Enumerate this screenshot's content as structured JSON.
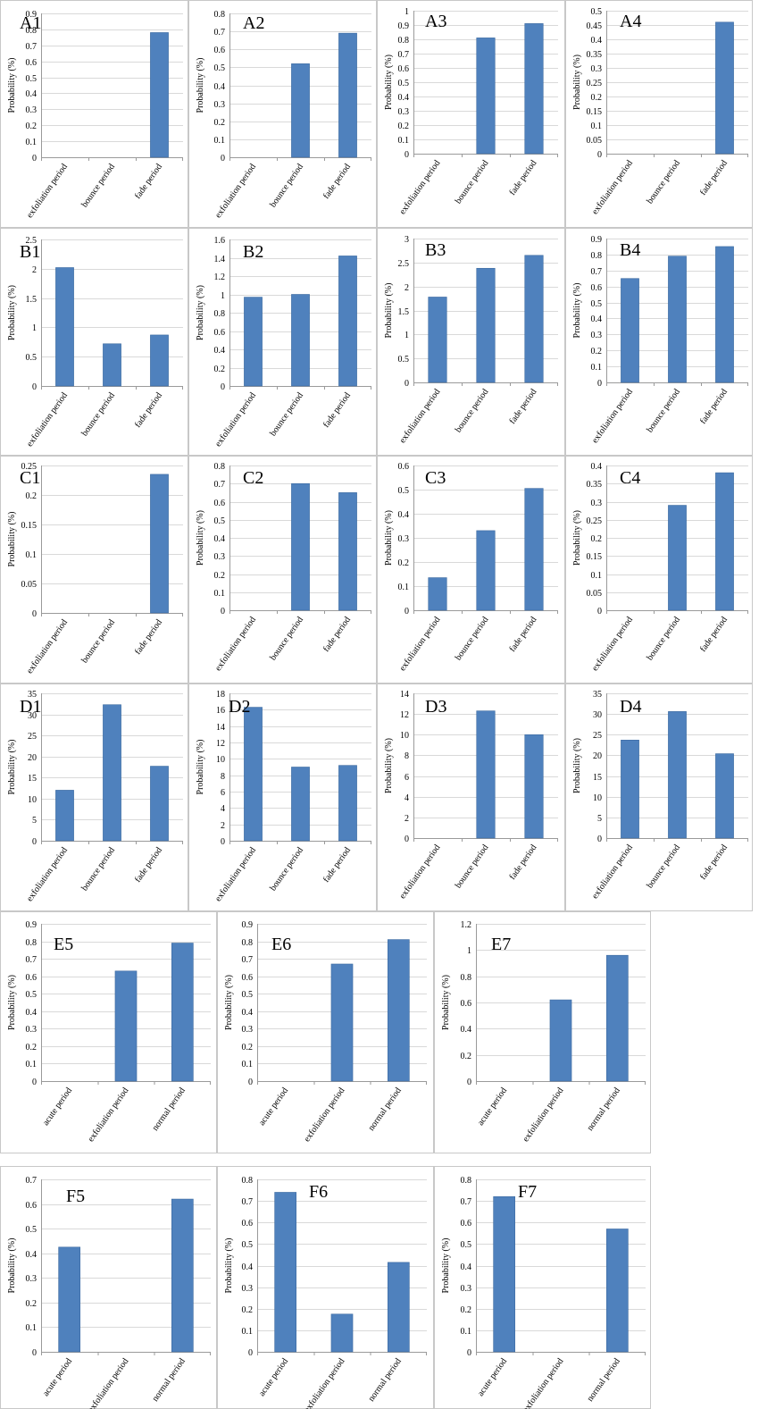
{
  "figure": {
    "background": "#ffffff",
    "bar_color": "#4f81bd"
  },
  "chart_data": [
    {
      "id": "A1",
      "type": "bar",
      "title": "A1",
      "ylabel": "Probability (%)",
      "categories": [
        "exfoliation period",
        "bounce period",
        "fade period"
      ],
      "values": [
        0,
        0,
        0.78
      ],
      "ylim": [
        0,
        0.9
      ],
      "yticks": [
        "0",
        "0.1",
        "0.2",
        "0.3",
        "0.4",
        "0.5",
        "0.6",
        "0.7",
        "0.8",
        "0.9"
      ],
      "grid": true
    },
    {
      "id": "A2",
      "type": "bar",
      "title": "A2",
      "ylabel": "Probability (%)",
      "categories": [
        "exfoliation period",
        "bounce period",
        "fade period"
      ],
      "values": [
        0,
        0.52,
        0.69
      ],
      "ylim": [
        0,
        0.8
      ],
      "yticks": [
        "0",
        "0.1",
        "0.2",
        "0.3",
        "0.4",
        "0.5",
        "0.6",
        "0.7",
        "0.8"
      ],
      "grid": true
    },
    {
      "id": "A3",
      "type": "bar",
      "title": "A3",
      "ylabel": "Probability (%)",
      "categories": [
        "exfoliation period",
        "bounce period",
        "fade period"
      ],
      "values": [
        0,
        0.81,
        0.91
      ],
      "ylim": [
        0,
        1
      ],
      "yticks": [
        "0",
        "0.1",
        "0.2",
        "0.3",
        "0.4",
        "0.5",
        "0.6",
        "0.7",
        "0.8",
        "0.9",
        "1"
      ],
      "grid": true
    },
    {
      "id": "A4",
      "type": "bar",
      "title": "A4",
      "ylabel": "Probability (%)",
      "categories": [
        "exfoliation period",
        "bounce period",
        "fade period"
      ],
      "values": [
        0,
        0,
        0.46
      ],
      "ylim": [
        0,
        0.5
      ],
      "yticks": [
        "0",
        "0.05",
        "0.1",
        "0.15",
        "0.2",
        "0.25",
        "0.3",
        "0.35",
        "0.4",
        "0.45",
        "0.5"
      ],
      "grid": true
    },
    {
      "id": "B1",
      "type": "bar",
      "title": "B1",
      "ylabel": "Probability (%)",
      "categories": [
        "exfoliation period",
        "bounce period",
        "fade period"
      ],
      "values": [
        2.02,
        0.72,
        0.87
      ],
      "ylim": [
        0,
        2.5
      ],
      "yticks": [
        "0",
        "0.5",
        "1",
        "1.5",
        "2",
        "2.5"
      ],
      "grid": true
    },
    {
      "id": "B2",
      "type": "bar",
      "title": "B2",
      "ylabel": "Probability (%)",
      "categories": [
        "exfoliation period",
        "bounce period",
        "fade period"
      ],
      "values": [
        0.97,
        1.0,
        1.42
      ],
      "ylim": [
        0,
        1.6
      ],
      "yticks": [
        "0",
        "0.2",
        "0.4",
        "0.6",
        "0.8",
        "1",
        "1.2",
        "1.4",
        "1.6"
      ],
      "grid": true
    },
    {
      "id": "B3",
      "type": "bar",
      "title": "B3",
      "ylabel": "Probability (%)",
      "categories": [
        "exfoliation period",
        "bounce period",
        "fade period"
      ],
      "values": [
        1.78,
        2.38,
        2.65
      ],
      "ylim": [
        0,
        3
      ],
      "yticks": [
        "0",
        "0.5",
        "1",
        "1.5",
        "2",
        "2.5",
        "3"
      ],
      "grid": true
    },
    {
      "id": "B4",
      "type": "bar",
      "title": "B4",
      "ylabel": "Probability (%)",
      "categories": [
        "exfoliation period",
        "bounce period",
        "fade period"
      ],
      "values": [
        0.65,
        0.79,
        0.85
      ],
      "ylim": [
        0,
        0.9
      ],
      "yticks": [
        "0",
        "0.1",
        "0.2",
        "0.3",
        "0.4",
        "0.5",
        "0.6",
        "0.7",
        "0.8",
        "0.9"
      ],
      "grid": true
    },
    {
      "id": "C1",
      "type": "bar",
      "title": "C1",
      "ylabel": "Probability (%)",
      "categories": [
        "exfoliation period",
        "bounce period",
        "fade period"
      ],
      "values": [
        0,
        0,
        0.235
      ],
      "ylim": [
        0,
        0.25
      ],
      "yticks": [
        "0",
        "0.05",
        "0.1",
        "0.15",
        "0.2",
        "0.25"
      ],
      "grid": true
    },
    {
      "id": "C2",
      "type": "bar",
      "title": "C2",
      "ylabel": "Probability (%)",
      "categories": [
        "exfoliation period",
        "bounce period",
        "fade period"
      ],
      "values": [
        0,
        0.7,
        0.65
      ],
      "ylim": [
        0,
        0.8
      ],
      "yticks": [
        "0",
        "0.1",
        "0.2",
        "0.3",
        "0.4",
        "0.5",
        "0.6",
        "0.7",
        "0.8"
      ],
      "grid": true
    },
    {
      "id": "C3",
      "type": "bar",
      "title": "C3",
      "ylabel": "Probability (%)",
      "categories": [
        "exfoliation period",
        "bounce period",
        "fade period"
      ],
      "values": [
        0.135,
        0.33,
        0.505
      ],
      "ylim": [
        0,
        0.6
      ],
      "yticks": [
        "0",
        "0.1",
        "0.2",
        "0.3",
        "0.4",
        "0.5",
        "0.6"
      ],
      "grid": true
    },
    {
      "id": "C4",
      "type": "bar",
      "title": "C4",
      "ylabel": "Probability (%)",
      "categories": [
        "exfoliation period",
        "bounce period",
        "fade period"
      ],
      "values": [
        0,
        0.29,
        0.38
      ],
      "ylim": [
        0,
        0.4
      ],
      "yticks": [
        "0",
        "0.05",
        "0.1",
        "0.15",
        "0.2",
        "0.25",
        "0.3",
        "0.35",
        "0.4"
      ],
      "grid": true
    },
    {
      "id": "D1",
      "type": "bar",
      "title": "D1",
      "ylabel": "Probability (%)",
      "categories": [
        "exfoliation period",
        "bounce period",
        "fade period"
      ],
      "values": [
        12,
        32.3,
        17.7
      ],
      "ylim": [
        0,
        35
      ],
      "yticks": [
        "0",
        "5",
        "10",
        "15",
        "20",
        "25",
        "30",
        "35"
      ],
      "grid": true
    },
    {
      "id": "D2",
      "type": "bar",
      "title": "D2",
      "ylabel": "Probability (%)",
      "categories": [
        "exfoliation period",
        "bounce period",
        "fade period"
      ],
      "values": [
        16.3,
        9.0,
        9.2
      ],
      "ylim": [
        0,
        18
      ],
      "yticks": [
        "0",
        "2",
        "4",
        "6",
        "8",
        "10",
        "12",
        "14",
        "16",
        "18"
      ],
      "grid": true
    },
    {
      "id": "D3",
      "type": "bar",
      "title": "D3",
      "ylabel": "Probability (%)",
      "categories": [
        "exfoliation period",
        "bounce period",
        "fade period"
      ],
      "values": [
        0,
        12.3,
        10
      ],
      "ylim": [
        0,
        14
      ],
      "yticks": [
        "0",
        "2",
        "4",
        "6",
        "8",
        "10",
        "12",
        "14"
      ],
      "grid": true
    },
    {
      "id": "D4",
      "type": "bar",
      "title": "D4",
      "ylabel": "Probability (%)",
      "categories": [
        "exfoliation period",
        "bounce period",
        "fade period"
      ],
      "values": [
        23.7,
        30.6,
        20.4
      ],
      "ylim": [
        0,
        35
      ],
      "yticks": [
        "0",
        "5",
        "10",
        "15",
        "20",
        "25",
        "30",
        "35"
      ],
      "grid": true
    },
    {
      "id": "E5",
      "type": "bar",
      "title": "E5",
      "ylabel": "Probability (%)",
      "categories": [
        "acute period",
        "exfoliation period",
        "normal period"
      ],
      "values": [
        0,
        0.63,
        0.79
      ],
      "ylim": [
        0,
        0.9
      ],
      "yticks": [
        "0",
        "0.1",
        "0.2",
        "0.3",
        "0.4",
        "0.5",
        "0.6",
        "0.7",
        "0.8",
        "0.9"
      ],
      "grid": true
    },
    {
      "id": "E6",
      "type": "bar",
      "title": "E6",
      "ylabel": "Probability (%)",
      "categories": [
        "acute period",
        "exfoliation period",
        "normal period"
      ],
      "values": [
        0,
        0.67,
        0.81
      ],
      "ylim": [
        0,
        0.9
      ],
      "yticks": [
        "0",
        "0.1",
        "0.2",
        "0.3",
        "0.4",
        "0.5",
        "0.6",
        "0.7",
        "0.8",
        "0.9"
      ],
      "grid": true
    },
    {
      "id": "E7",
      "type": "bar",
      "title": "E7",
      "ylabel": "Probability (%)",
      "categories": [
        "acute period",
        "exfoliation period",
        "normal period"
      ],
      "values": [
        0,
        0.62,
        0.96
      ],
      "ylim": [
        0,
        1.2
      ],
      "yticks": [
        "0",
        "0.2",
        "0.4",
        "0.6",
        "0.8",
        "1",
        "1.2"
      ],
      "grid": true
    },
    {
      "id": "F5",
      "type": "bar",
      "title": "F5",
      "ylabel": "Probability (%)",
      "categories": [
        "acute period",
        "exfoliation period",
        "normal period"
      ],
      "values": [
        0.425,
        0,
        0.62
      ],
      "ylim": [
        0,
        0.7
      ],
      "yticks": [
        "0",
        "0.1",
        "0.2",
        "0.3",
        "0.4",
        "0.5",
        "0.6",
        "0.7"
      ],
      "grid": true
    },
    {
      "id": "F6",
      "type": "bar",
      "title": "F6",
      "ylabel": "Probability (%)",
      "categories": [
        "acute period",
        "exfoliation period",
        "normal period"
      ],
      "values": [
        0.74,
        0.175,
        0.415
      ],
      "ylim": [
        0,
        0.8
      ],
      "yticks": [
        "0",
        "0.1",
        "0.2",
        "0.3",
        "0.4",
        "0.5",
        "0.6",
        "0.7",
        "0.8"
      ],
      "grid": true
    },
    {
      "id": "F7",
      "type": "bar",
      "title": "F7",
      "ylabel": "Probability (%)",
      "categories": [
        "acute period",
        "exfoliation period",
        "normal period"
      ],
      "values": [
        0.72,
        0,
        0.57
      ],
      "ylim": [
        0,
        0.8
      ],
      "yticks": [
        "0",
        "0.1",
        "0.2",
        "0.3",
        "0.4",
        "0.5",
        "0.6",
        "0.7",
        "0.8"
      ],
      "grid": true
    }
  ]
}
